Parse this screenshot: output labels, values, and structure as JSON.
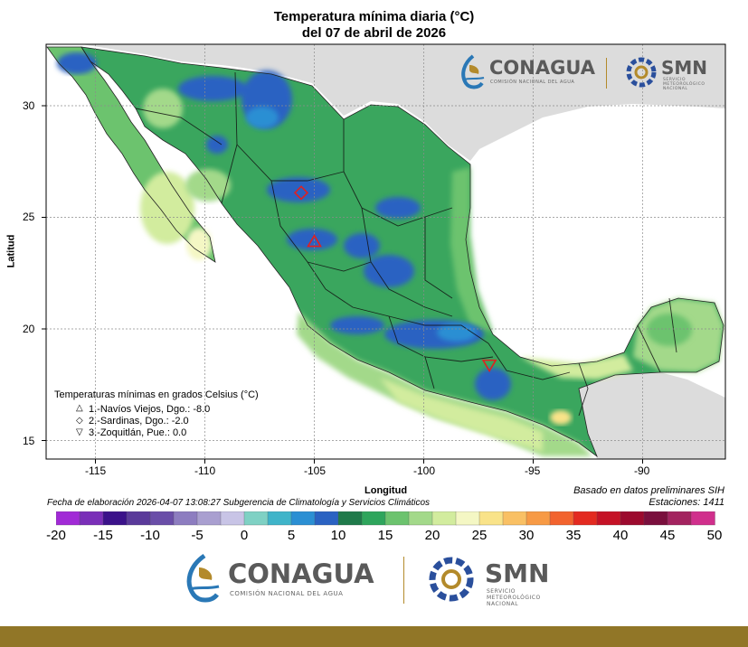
{
  "title_line1": "Temperatura mínima diaria (°C)",
  "title_line2": "del 07 de abril de 2026",
  "axes": {
    "x_label": "Longitud",
    "y_label": "Latitud",
    "x_ticks": [
      "-115",
      "-110",
      "-105",
      "-100",
      "-95",
      "-90"
    ],
    "y_ticks": [
      "30",
      "25",
      "20",
      "15"
    ]
  },
  "legend": {
    "title": "Temperaturas mínimas en grados Celsius (°C)",
    "stations": [
      {
        "marker": "triangle-up",
        "text": "1.-Navíos Viejos, Dgo.: -8.0",
        "lon": -105.0,
        "lat": 23.9
      },
      {
        "marker": "diamond",
        "text": "2.-Sardinas, Dgo.: -2.0",
        "lon": -105.6,
        "lat": 26.1
      },
      {
        "marker": "triangle-down",
        "text": "3.-Zoquitlán, Pue.: 0.0",
        "lon": -97.0,
        "lat": 18.4
      }
    ]
  },
  "footer": {
    "elaboration": "Fecha de elaboración 2026-04-07 13:08:27 Subgerencia de Climatología y Servicios Climáticos",
    "basis": "Basado en datos preliminares SIH",
    "stations_count": "Estaciones:  1411"
  },
  "colorbar": {
    "ticks": [
      "-20",
      "-15",
      "-10",
      "-5",
      "0",
      "5",
      "10",
      "15",
      "20",
      "25",
      "30",
      "35",
      "40",
      "45",
      "50"
    ],
    "colors": [
      "#a12ad6",
      "#7a2fb8",
      "#3b128a",
      "#5a3a9a",
      "#6a4ea8",
      "#8d7dc0",
      "#a99fd0",
      "#c8c4e6",
      "#7fd1c4",
      "#3fb4c9",
      "#2b8fd3",
      "#2a62c2",
      "#1f7a4a",
      "#2ea55c",
      "#6cc36e",
      "#a3d98a",
      "#d2ec9e",
      "#f4f7c4",
      "#f9e389",
      "#f9c064",
      "#f79a45",
      "#f2632e",
      "#e32a20",
      "#c51226",
      "#9c0a2e",
      "#7a0f3d",
      "#a3235f",
      "#d02f8c"
    ]
  },
  "logos": {
    "conagua_word": "CONAGUA",
    "conagua_sub": "COMISIÓN NACIONAL DEL AGUA",
    "smn_word": "SMN",
    "smn_sub1": "SERVICIO",
    "smn_sub2": "METEOROLÓGICO",
    "smn_sub3": "NACIONAL"
  },
  "map_colors": {
    "ocean": "#ffffff",
    "usa_land": "#dcdcdc",
    "grid": "#8c8c8c"
  }
}
